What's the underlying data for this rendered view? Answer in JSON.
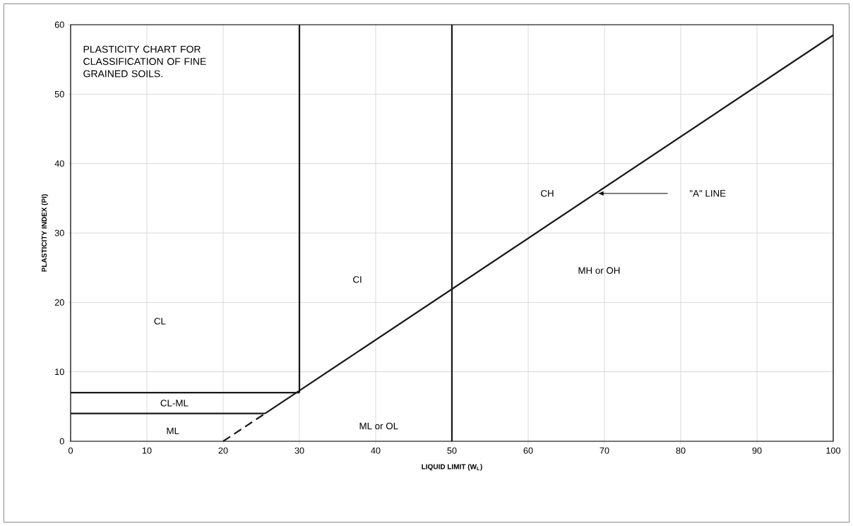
{
  "chart_data": {
    "type": "line",
    "title": "PLASTICITY CHART FOR CLASSIFICATION OF FINE GRAINED SOILS.",
    "xlabel": "LIQUID LIMIT (W$_{L}$)",
    "ylabel": "PLASTICITY INDEX (PI)",
    "xlim": [
      0,
      100
    ],
    "ylim": [
      0,
      60
    ],
    "xticks": [
      0,
      10,
      20,
      30,
      40,
      50,
      60,
      70,
      80,
      90,
      100
    ],
    "yticks": [
      0,
      10,
      20,
      30,
      40,
      50,
      60
    ],
    "grid": true,
    "marker": "none",
    "series": [
      {
        "color": "#1a1a1a",
        "line_style": "solid",
        "x": [
          25.5,
          100
        ],
        "values": [
          4,
          58.5
        ]
      },
      {
        "color": "#1a1a1a",
        "line_style": "dashed",
        "x": [
          20,
          25.5
        ],
        "values": [
          0,
          4
        ]
      },
      {
        "color": "#1a1a1a",
        "line_style": "solid",
        "x": [
          0,
          30
        ],
        "values": [
          7,
          7
        ]
      },
      {
        "color": "#1a1a1a",
        "line_style": "solid",
        "x": [
          0,
          25.5
        ],
        "values": [
          4,
          4
        ]
      },
      {
        "color": "#1a1a1a",
        "line_style": "solid",
        "x": [
          30,
          30
        ],
        "values": [
          7,
          60
        ]
      },
      {
        "color": "#1a1a1a",
        "line_style": "solid",
        "x": [
          50,
          50
        ],
        "values": [
          0,
          60
        ]
      }
    ],
    "annotations": [
      "CL",
      "CI",
      "CH",
      "MH or OH",
      "ML or OL",
      "CL-ML",
      "ML",
      "\"A\" LINE"
    ]
  }
}
